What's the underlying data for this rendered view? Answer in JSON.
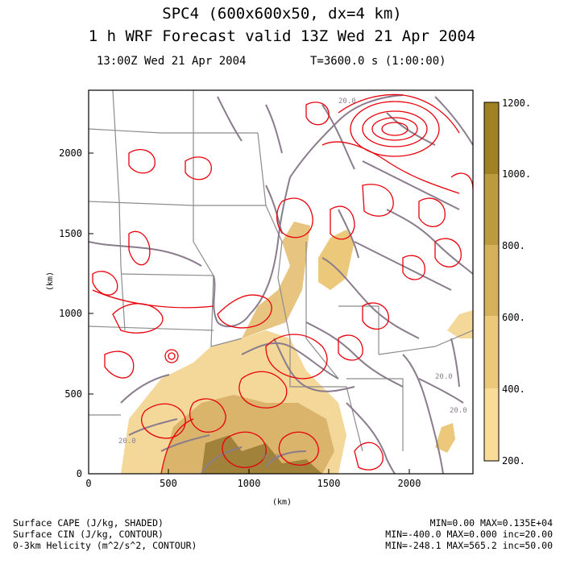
{
  "header": {
    "title_line1": "SPC4 (600x600x50, dx=4 km)",
    "title_line2": "1 h WRF Forecast valid 13Z Wed 21 Apr 2004",
    "valid_time": "13:00Z Wed 21 Apr 2004",
    "elapsed_time": "T=3600.0 s (1:00:00)"
  },
  "axes": {
    "x_label": "(km)",
    "y_label": "(km)",
    "x_ticks": [
      "0",
      "500",
      "1000",
      "1500",
      "2000"
    ],
    "y_ticks": [
      "0",
      "500",
      "1000",
      "1500",
      "2000"
    ]
  },
  "colorbar": {
    "labels": [
      "200.",
      "400.",
      "600.",
      "800.",
      "1000.",
      "1200."
    ],
    "colors": [
      "#f8dc98",
      "#ecc97a",
      "#d6b15c",
      "#bc9a3e",
      "#a08224",
      "#7a6012"
    ]
  },
  "contour_labels": [
    "20.0",
    "20.0",
    "20.0",
    "20.0",
    "20.0"
  ],
  "colors": {
    "helicity": "#e8000b",
    "cin": "#8a7c8c",
    "boundaries": "#8c8c8c",
    "cape_light": "#f3d89a",
    "cape_mid": "#d9b46a",
    "cape_dark": "#a0823a"
  },
  "footer": {
    "cape_label": "Surface CAPE (J/kg, SHADED)",
    "cin_label": "Surface CIN (J/kg, CONTOUR)",
    "helicity_label": "0-3km Helicity (m^2/s^2, CONTOUR)",
    "cape_stats": "MIN=0.00 MAX=0.135E+04",
    "cin_stats": "MIN=-400.0 MAX=0.000 inc=20.00",
    "helicity_stats": "MIN=-248.1 MAX=565.2 inc=50.00"
  }
}
